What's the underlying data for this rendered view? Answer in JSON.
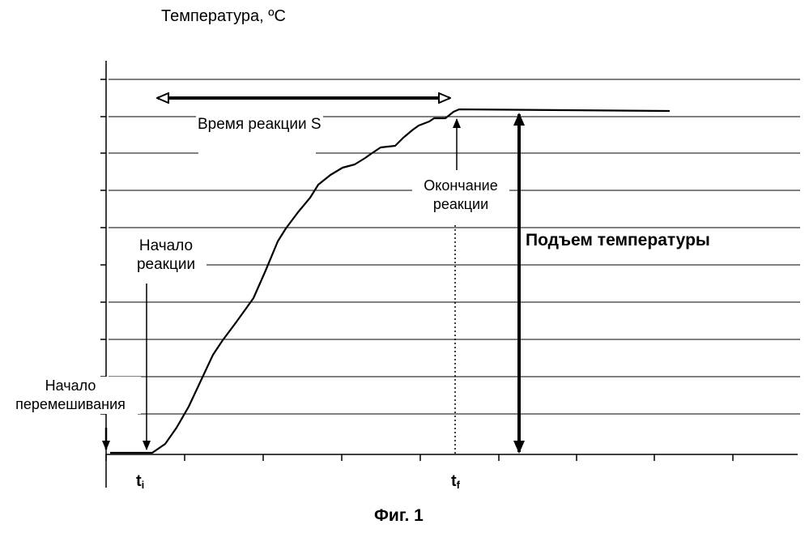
{
  "figure": {
    "y_axis_label": "Температура, ºС",
    "reaction_time_label": "Время реакции S",
    "reaction_end_label_line1": "Окончание",
    "reaction_end_label_line2": "реакции",
    "reaction_start_label_line1": "Начало",
    "reaction_start_label_line2": "реакции",
    "mixing_start_label_line1": "Начало",
    "mixing_start_label_line2": "перемешивания",
    "temp_rise_label": "Подъем температуры",
    "ti_main": "t",
    "ti_sub": "i",
    "tf_main": "t",
    "tf_sub": "f",
    "caption": "Фиг. 1"
  },
  "colors": {
    "line": "#000000",
    "background": "#ffffff"
  }
}
